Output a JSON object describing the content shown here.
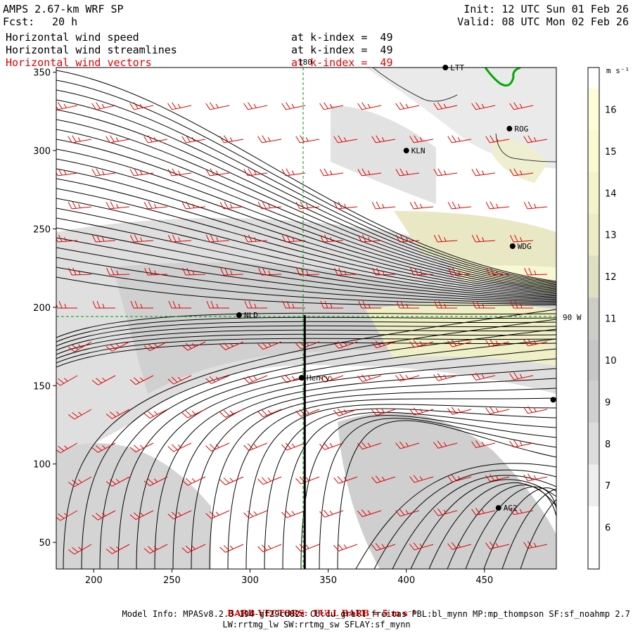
{
  "header": {
    "model": "AMPS 2.67-km WRF SP",
    "forecast_label": "Fcst:",
    "forecast_hours": "20 h",
    "init": "Init: 12 UTC Sun 01 Feb 26",
    "valid": "Valid: 08 UTC Mon 02 Feb 26",
    "fields": [
      {
        "name": "Horizontal wind speed",
        "level": "at k-index =  49"
      },
      {
        "name": "Horizontal wind streamlines",
        "level": "at k-index =  49"
      },
      {
        "name": "Horizontal wind vectors",
        "level": "at k-index =  49"
      }
    ]
  },
  "map": {
    "x_ticks": [
      "200",
      "250",
      "300",
      "350",
      "400",
      "450"
    ],
    "y_ticks": [
      "50",
      "100",
      "150",
      "200",
      "250",
      "300",
      "350"
    ],
    "x_range": [
      176,
      496
    ],
    "y_range": [
      33,
      353
    ],
    "meridian_label": "180",
    "parallel_label": "90 W",
    "stations": [
      {
        "name": "LTT",
        "x": 425,
        "y": 353
      },
      {
        "name": "ROG",
        "x": 466,
        "y": 314
      },
      {
        "name": "KLN",
        "x": 400,
        "y": 300
      },
      {
        "name": "WDG",
        "x": 468,
        "y": 239
      },
      {
        "name": "NLD",
        "x": 293,
        "y": 195
      },
      {
        "name": "Henry",
        "x": 333,
        "y": 155
      },
      {
        "name": "",
        "x": 494,
        "y": 141
      },
      {
        "name": "AG2",
        "x": 459,
        "y": 72
      }
    ],
    "section_x": 335,
    "section_top_y": 195
  },
  "colorbar": {
    "unit": "m s⁻¹",
    "labels": [
      "6",
      "7",
      "8",
      "9",
      "10",
      "11",
      "12",
      "13",
      "14",
      "15",
      "16"
    ],
    "colors": [
      "#ffffff",
      "#eeeeee",
      "#dddddd",
      "#cfcfcf",
      "#c6c6c6",
      "#cdcdc4",
      "#dfdfc2",
      "#ececc6",
      "#f4f4cb",
      "#fafad2",
      "#fdfdda"
    ]
  },
  "footer": {
    "barb_note": "BARB VECTORS:  FULL BARB = 5 m s⁻¹",
    "model_info": "Model Info: MPASv8.2.3-194-gf29cd82c CU:cu_grell_freitas PBL:bl_mynn MP:mp_thompson SF:sf_noahmp 2.7",
    "model_info2": "LW:rrtmg_lw SW:rrtmg_sw SFLAY:sf_mynn"
  },
  "colors": {
    "streamline": "#000000",
    "barb": "#e00000",
    "coast": "#00aa00",
    "guide": "#009900"
  }
}
